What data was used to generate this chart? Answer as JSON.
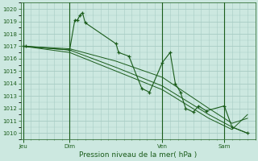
{
  "bg_color": "#cce8e0",
  "grid_color": "#a8ccc4",
  "line_color": "#1a5c1a",
  "marker_color": "#1a5c1a",
  "xlabel": "Pression niveau de la mer( hPa )",
  "xlabel_color": "#1a5c1a",
  "tick_color": "#1a5c1a",
  "ylim": [
    1009.5,
    1020.5
  ],
  "yticks": [
    1010,
    1011,
    1012,
    1013,
    1014,
    1015,
    1016,
    1017,
    1018,
    1019,
    1020
  ],
  "day_labels": [
    "Jeu",
    "Dim",
    "Ven",
    "Sam"
  ],
  "day_positions": [
    0,
    18,
    54,
    78
  ],
  "xlim": [
    -1,
    90
  ],
  "series1_with_markers": {
    "x": [
      0,
      1,
      18,
      20,
      21,
      22,
      23,
      24,
      36,
      37,
      41,
      46,
      49,
      54,
      57,
      59,
      61,
      63,
      66,
      68,
      71,
      78,
      81,
      87
    ],
    "y": [
      1017,
      1017,
      1016.7,
      1019.1,
      1019.1,
      1019.5,
      1019.7,
      1018.9,
      1017.2,
      1016.5,
      1016.2,
      1013.6,
      1013.3,
      1015.7,
      1016.5,
      1014.0,
      1013.3,
      1012.0,
      1011.7,
      1012.2,
      1011.8,
      1012.2,
      1010.5,
      1010.0
    ]
  },
  "series2": {
    "x": [
      0,
      18,
      36,
      54,
      72,
      81,
      87
    ],
    "y": [
      1017,
      1016.7,
      1015.3,
      1013.8,
      1011.5,
      1010.5,
      1010.0
    ]
  },
  "series3": {
    "x": [
      0,
      18,
      36,
      54,
      72,
      81,
      87
    ],
    "y": [
      1017,
      1016.5,
      1015.0,
      1013.5,
      1011.2,
      1010.3,
      1011.5
    ]
  },
  "series4": {
    "x": [
      0,
      18,
      36,
      54,
      72,
      81,
      87
    ],
    "y": [
      1017,
      1016.8,
      1015.8,
      1014.5,
      1012.0,
      1010.8,
      1011.2
    ]
  },
  "ylabel_fontsize": 5.0,
  "xlabel_fontsize": 6.5,
  "tick_fontsize": 5.0
}
